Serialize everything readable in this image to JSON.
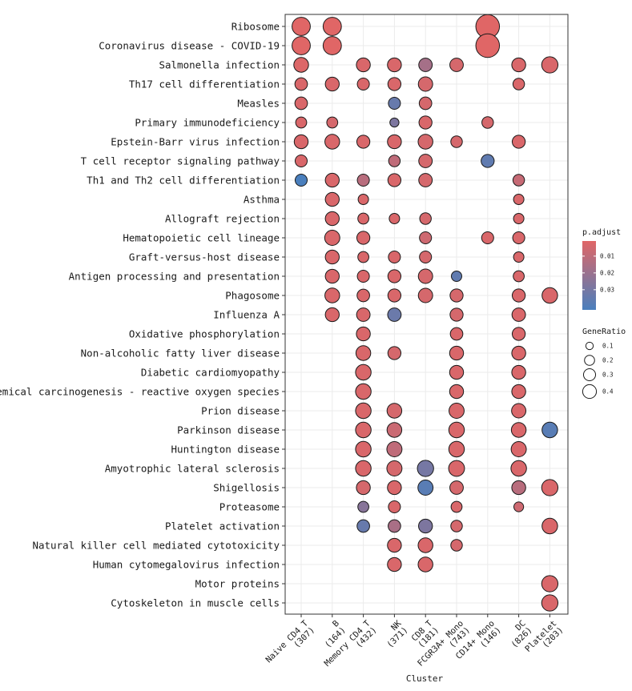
{
  "chart_data": {
    "type": "scatter",
    "subtype": "dot-plot",
    "xlabel": "Cluster",
    "clusters": [
      {
        "name": "Naive CD4 T",
        "count": "(307)"
      },
      {
        "name": "B",
        "count": "(164)"
      },
      {
        "name": "Memory CD4 T",
        "count": "(432)"
      },
      {
        "name": "NK",
        "count": "(371)"
      },
      {
        "name": "CD8 T",
        "count": "(181)"
      },
      {
        "name": "FCGR3A+ Mono",
        "count": "(743)"
      },
      {
        "name": "CD14+ Mono",
        "count": "(146)"
      },
      {
        "name": "DC",
        "count": "(826)"
      },
      {
        "name": "Platelet",
        "count": "(203)"
      }
    ],
    "terms": [
      "Ribosome",
      "Coronavirus disease - COVID-19",
      "Salmonella infection",
      "Th17 cell differentiation",
      "Measles",
      "Primary immunodeficiency",
      "Epstein-Barr virus infection",
      "T cell receptor signaling pathway",
      "Th1 and Th2 cell differentiation",
      "Asthma",
      "Allograft rejection",
      "Hematopoietic cell lineage",
      "Graft-versus-host disease",
      "Antigen processing and presentation",
      "Phagosome",
      "Influenza A",
      "Oxidative phosphorylation",
      "Non-alcoholic fatty liver disease",
      "Diabetic cardiomyopathy",
      "Chemical carcinogenesis - reactive oxygen species",
      "Prion disease",
      "Parkinson disease",
      "Huntington disease",
      "Amyotrophic lateral sclerosis",
      "Shigellosis",
      "Proteasome",
      "Platelet activation",
      "Natural killer cell mediated cytotoxicity",
      "Human cytomegalovirus infection",
      "Motor proteins",
      "Cytoskeleton in muscle cells"
    ],
    "points": [
      {
        "term": 0,
        "cluster": 0,
        "gene_ratio": 0.26,
        "p_adjust": 0.001
      },
      {
        "term": 0,
        "cluster": 1,
        "gene_ratio": 0.26,
        "p_adjust": 0.001
      },
      {
        "term": 0,
        "cluster": 6,
        "gene_ratio": 0.46,
        "p_adjust": 0.001
      },
      {
        "term": 1,
        "cluster": 0,
        "gene_ratio": 0.26,
        "p_adjust": 0.001
      },
      {
        "term": 1,
        "cluster": 1,
        "gene_ratio": 0.26,
        "p_adjust": 0.001
      },
      {
        "term": 1,
        "cluster": 6,
        "gene_ratio": 0.46,
        "p_adjust": 0.001
      },
      {
        "term": 2,
        "cluster": 0,
        "gene_ratio": 0.16,
        "p_adjust": 0.002
      },
      {
        "term": 2,
        "cluster": 2,
        "gene_ratio": 0.14,
        "p_adjust": 0.003
      },
      {
        "term": 2,
        "cluster": 3,
        "gene_ratio": 0.14,
        "p_adjust": 0.003
      },
      {
        "term": 2,
        "cluster": 4,
        "gene_ratio": 0.13,
        "p_adjust": 0.017
      },
      {
        "term": 2,
        "cluster": 5,
        "gene_ratio": 0.13,
        "p_adjust": 0.004
      },
      {
        "term": 2,
        "cluster": 7,
        "gene_ratio": 0.14,
        "p_adjust": 0.003
      },
      {
        "term": 2,
        "cluster": 8,
        "gene_ratio": 0.2,
        "p_adjust": 0.003
      },
      {
        "term": 3,
        "cluster": 0,
        "gene_ratio": 0.11,
        "p_adjust": 0.003
      },
      {
        "term": 3,
        "cluster": 1,
        "gene_ratio": 0.14,
        "p_adjust": 0.003
      },
      {
        "term": 3,
        "cluster": 2,
        "gene_ratio": 0.1,
        "p_adjust": 0.003
      },
      {
        "term": 3,
        "cluster": 3,
        "gene_ratio": 0.12,
        "p_adjust": 0.003
      },
      {
        "term": 3,
        "cluster": 4,
        "gene_ratio": 0.15,
        "p_adjust": 0.004
      },
      {
        "term": 3,
        "cluster": 7,
        "gene_ratio": 0.09,
        "p_adjust": 0.003
      },
      {
        "term": 4,
        "cluster": 0,
        "gene_ratio": 0.11,
        "p_adjust": 0.003
      },
      {
        "term": 4,
        "cluster": 3,
        "gene_ratio": 0.1,
        "p_adjust": 0.034
      },
      {
        "term": 4,
        "cluster": 4,
        "gene_ratio": 0.11,
        "p_adjust": 0.004
      },
      {
        "term": 5,
        "cluster": 0,
        "gene_ratio": 0.08,
        "p_adjust": 0.003
      },
      {
        "term": 5,
        "cluster": 1,
        "gene_ratio": 0.08,
        "p_adjust": 0.004
      },
      {
        "term": 5,
        "cluster": 3,
        "gene_ratio": 0.05,
        "p_adjust": 0.028
      },
      {
        "term": 5,
        "cluster": 4,
        "gene_ratio": 0.12,
        "p_adjust": 0.003
      },
      {
        "term": 5,
        "cluster": 6,
        "gene_ratio": 0.09,
        "p_adjust": 0.004
      },
      {
        "term": 6,
        "cluster": 0,
        "gene_ratio": 0.14,
        "p_adjust": 0.003
      },
      {
        "term": 6,
        "cluster": 1,
        "gene_ratio": 0.16,
        "p_adjust": 0.003
      },
      {
        "term": 6,
        "cluster": 2,
        "gene_ratio": 0.12,
        "p_adjust": 0.003
      },
      {
        "term": 6,
        "cluster": 3,
        "gene_ratio": 0.14,
        "p_adjust": 0.003
      },
      {
        "term": 6,
        "cluster": 4,
        "gene_ratio": 0.16,
        "p_adjust": 0.004
      },
      {
        "term": 6,
        "cluster": 5,
        "gene_ratio": 0.09,
        "p_adjust": 0.004
      },
      {
        "term": 6,
        "cluster": 7,
        "gene_ratio": 0.12,
        "p_adjust": 0.003
      },
      {
        "term": 7,
        "cluster": 0,
        "gene_ratio": 0.1,
        "p_adjust": 0.003
      },
      {
        "term": 7,
        "cluster": 3,
        "gene_ratio": 0.09,
        "p_adjust": 0.01
      },
      {
        "term": 7,
        "cluster": 4,
        "gene_ratio": 0.13,
        "p_adjust": 0.004
      },
      {
        "term": 7,
        "cluster": 6,
        "gene_ratio": 0.12,
        "p_adjust": 0.036
      },
      {
        "term": 8,
        "cluster": 0,
        "gene_ratio": 0.1,
        "p_adjust": 0.042
      },
      {
        "term": 8,
        "cluster": 1,
        "gene_ratio": 0.14,
        "p_adjust": 0.003
      },
      {
        "term": 8,
        "cluster": 2,
        "gene_ratio": 0.1,
        "p_adjust": 0.012
      },
      {
        "term": 8,
        "cluster": 3,
        "gene_ratio": 0.12,
        "p_adjust": 0.003
      },
      {
        "term": 8,
        "cluster": 4,
        "gene_ratio": 0.13,
        "p_adjust": 0.004
      },
      {
        "term": 8,
        "cluster": 7,
        "gene_ratio": 0.09,
        "p_adjust": 0.008
      },
      {
        "term": 9,
        "cluster": 1,
        "gene_ratio": 0.14,
        "p_adjust": 0.003
      },
      {
        "term": 9,
        "cluster": 2,
        "gene_ratio": 0.07,
        "p_adjust": 0.003
      },
      {
        "term": 9,
        "cluster": 7,
        "gene_ratio": 0.07,
        "p_adjust": 0.003
      },
      {
        "term": 10,
        "cluster": 1,
        "gene_ratio": 0.14,
        "p_adjust": 0.003
      },
      {
        "term": 10,
        "cluster": 2,
        "gene_ratio": 0.08,
        "p_adjust": 0.003
      },
      {
        "term": 10,
        "cluster": 3,
        "gene_ratio": 0.07,
        "p_adjust": 0.003
      },
      {
        "term": 10,
        "cluster": 4,
        "gene_ratio": 0.09,
        "p_adjust": 0.004
      },
      {
        "term": 10,
        "cluster": 7,
        "gene_ratio": 0.07,
        "p_adjust": 0.003
      },
      {
        "term": 11,
        "cluster": 1,
        "gene_ratio": 0.17,
        "p_adjust": 0.003
      },
      {
        "term": 11,
        "cluster": 2,
        "gene_ratio": 0.12,
        "p_adjust": 0.003
      },
      {
        "term": 11,
        "cluster": 4,
        "gene_ratio": 0.1,
        "p_adjust": 0.006
      },
      {
        "term": 11,
        "cluster": 6,
        "gene_ratio": 0.1,
        "p_adjust": 0.003
      },
      {
        "term": 11,
        "cluster": 7,
        "gene_ratio": 0.1,
        "p_adjust": 0.003
      },
      {
        "term": 12,
        "cluster": 1,
        "gene_ratio": 0.14,
        "p_adjust": 0.003
      },
      {
        "term": 12,
        "cluster": 2,
        "gene_ratio": 0.08,
        "p_adjust": 0.003
      },
      {
        "term": 12,
        "cluster": 3,
        "gene_ratio": 0.1,
        "p_adjust": 0.003
      },
      {
        "term": 12,
        "cluster": 4,
        "gene_ratio": 0.1,
        "p_adjust": 0.004
      },
      {
        "term": 12,
        "cluster": 7,
        "gene_ratio": 0.07,
        "p_adjust": 0.003
      },
      {
        "term": 13,
        "cluster": 1,
        "gene_ratio": 0.14,
        "p_adjust": 0.003
      },
      {
        "term": 13,
        "cluster": 2,
        "gene_ratio": 0.1,
        "p_adjust": 0.003
      },
      {
        "term": 13,
        "cluster": 3,
        "gene_ratio": 0.12,
        "p_adjust": 0.003
      },
      {
        "term": 13,
        "cluster": 4,
        "gene_ratio": 0.15,
        "p_adjust": 0.004
      },
      {
        "term": 13,
        "cluster": 5,
        "gene_ratio": 0.07,
        "p_adjust": 0.036
      },
      {
        "term": 13,
        "cluster": 7,
        "gene_ratio": 0.08,
        "p_adjust": 0.003
      },
      {
        "term": 14,
        "cluster": 1,
        "gene_ratio": 0.16,
        "p_adjust": 0.003
      },
      {
        "term": 14,
        "cluster": 2,
        "gene_ratio": 0.11,
        "p_adjust": 0.003
      },
      {
        "term": 14,
        "cluster": 3,
        "gene_ratio": 0.12,
        "p_adjust": 0.003
      },
      {
        "term": 14,
        "cluster": 4,
        "gene_ratio": 0.15,
        "p_adjust": 0.004
      },
      {
        "term": 14,
        "cluster": 5,
        "gene_ratio": 0.12,
        "p_adjust": 0.004
      },
      {
        "term": 14,
        "cluster": 7,
        "gene_ratio": 0.12,
        "p_adjust": 0.003
      },
      {
        "term": 14,
        "cluster": 8,
        "gene_ratio": 0.18,
        "p_adjust": 0.003
      },
      {
        "term": 15,
        "cluster": 1,
        "gene_ratio": 0.14,
        "p_adjust": 0.003
      },
      {
        "term": 15,
        "cluster": 2,
        "gene_ratio": 0.13,
        "p_adjust": 0.003
      },
      {
        "term": 15,
        "cluster": 3,
        "gene_ratio": 0.13,
        "p_adjust": 0.033
      },
      {
        "term": 15,
        "cluster": 5,
        "gene_ratio": 0.12,
        "p_adjust": 0.004
      },
      {
        "term": 15,
        "cluster": 7,
        "gene_ratio": 0.13,
        "p_adjust": 0.003
      },
      {
        "term": 16,
        "cluster": 2,
        "gene_ratio": 0.14,
        "p_adjust": 0.003
      },
      {
        "term": 16,
        "cluster": 5,
        "gene_ratio": 0.11,
        "p_adjust": 0.003
      },
      {
        "term": 16,
        "cluster": 7,
        "gene_ratio": 0.12,
        "p_adjust": 0.003
      },
      {
        "term": 17,
        "cluster": 2,
        "gene_ratio": 0.16,
        "p_adjust": 0.003
      },
      {
        "term": 17,
        "cluster": 3,
        "gene_ratio": 0.12,
        "p_adjust": 0.004
      },
      {
        "term": 17,
        "cluster": 5,
        "gene_ratio": 0.14,
        "p_adjust": 0.003
      },
      {
        "term": 17,
        "cluster": 7,
        "gene_ratio": 0.14,
        "p_adjust": 0.003
      },
      {
        "term": 18,
        "cluster": 2,
        "gene_ratio": 0.18,
        "p_adjust": 0.003
      },
      {
        "term": 18,
        "cluster": 5,
        "gene_ratio": 0.14,
        "p_adjust": 0.003
      },
      {
        "term": 18,
        "cluster": 7,
        "gene_ratio": 0.14,
        "p_adjust": 0.003
      },
      {
        "term": 19,
        "cluster": 2,
        "gene_ratio": 0.18,
        "p_adjust": 0.003
      },
      {
        "term": 19,
        "cluster": 5,
        "gene_ratio": 0.14,
        "p_adjust": 0.003
      },
      {
        "term": 19,
        "cluster": 7,
        "gene_ratio": 0.14,
        "p_adjust": 0.003
      },
      {
        "term": 20,
        "cluster": 2,
        "gene_ratio": 0.18,
        "p_adjust": 0.003
      },
      {
        "term": 20,
        "cluster": 3,
        "gene_ratio": 0.16,
        "p_adjust": 0.004
      },
      {
        "term": 20,
        "cluster": 5,
        "gene_ratio": 0.17,
        "p_adjust": 0.003
      },
      {
        "term": 20,
        "cluster": 7,
        "gene_ratio": 0.15,
        "p_adjust": 0.003
      },
      {
        "term": 21,
        "cluster": 2,
        "gene_ratio": 0.18,
        "p_adjust": 0.003
      },
      {
        "term": 21,
        "cluster": 3,
        "gene_ratio": 0.16,
        "p_adjust": 0.007
      },
      {
        "term": 21,
        "cluster": 5,
        "gene_ratio": 0.18,
        "p_adjust": 0.003
      },
      {
        "term": 21,
        "cluster": 7,
        "gene_ratio": 0.16,
        "p_adjust": 0.003
      },
      {
        "term": 21,
        "cluster": 8,
        "gene_ratio": 0.18,
        "p_adjust": 0.038
      },
      {
        "term": 22,
        "cluster": 2,
        "gene_ratio": 0.18,
        "p_adjust": 0.003
      },
      {
        "term": 22,
        "cluster": 3,
        "gene_ratio": 0.17,
        "p_adjust": 0.01
      },
      {
        "term": 22,
        "cluster": 5,
        "gene_ratio": 0.18,
        "p_adjust": 0.003
      },
      {
        "term": 22,
        "cluster": 7,
        "gene_ratio": 0.17,
        "p_adjust": 0.003
      },
      {
        "term": 23,
        "cluster": 2,
        "gene_ratio": 0.18,
        "p_adjust": 0.003
      },
      {
        "term": 23,
        "cluster": 3,
        "gene_ratio": 0.17,
        "p_adjust": 0.004
      },
      {
        "term": 23,
        "cluster": 4,
        "gene_ratio": 0.2,
        "p_adjust": 0.03
      },
      {
        "term": 23,
        "cluster": 5,
        "gene_ratio": 0.19,
        "p_adjust": 0.003
      },
      {
        "term": 23,
        "cluster": 7,
        "gene_ratio": 0.18,
        "p_adjust": 0.003
      },
      {
        "term": 24,
        "cluster": 2,
        "gene_ratio": 0.14,
        "p_adjust": 0.004
      },
      {
        "term": 24,
        "cluster": 3,
        "gene_ratio": 0.14,
        "p_adjust": 0.003
      },
      {
        "term": 24,
        "cluster": 4,
        "gene_ratio": 0.17,
        "p_adjust": 0.038
      },
      {
        "term": 24,
        "cluster": 5,
        "gene_ratio": 0.13,
        "p_adjust": 0.004
      },
      {
        "term": 24,
        "cluster": 7,
        "gene_ratio": 0.14,
        "p_adjust": 0.012
      },
      {
        "term": 24,
        "cluster": 8,
        "gene_ratio": 0.2,
        "p_adjust": 0.003
      },
      {
        "term": 25,
        "cluster": 2,
        "gene_ratio": 0.08,
        "p_adjust": 0.025
      },
      {
        "term": 25,
        "cluster": 3,
        "gene_ratio": 0.1,
        "p_adjust": 0.003
      },
      {
        "term": 25,
        "cluster": 5,
        "gene_ratio": 0.08,
        "p_adjust": 0.003
      },
      {
        "term": 25,
        "cluster": 7,
        "gene_ratio": 0.06,
        "p_adjust": 0.006
      },
      {
        "term": 26,
        "cluster": 2,
        "gene_ratio": 0.11,
        "p_adjust": 0.034
      },
      {
        "term": 26,
        "cluster": 3,
        "gene_ratio": 0.11,
        "p_adjust": 0.016
      },
      {
        "term": 26,
        "cluster": 4,
        "gene_ratio": 0.14,
        "p_adjust": 0.028
      },
      {
        "term": 26,
        "cluster": 5,
        "gene_ratio": 0.09,
        "p_adjust": 0.004
      },
      {
        "term": 26,
        "cluster": 8,
        "gene_ratio": 0.18,
        "p_adjust": 0.003
      },
      {
        "term": 27,
        "cluster": 3,
        "gene_ratio": 0.14,
        "p_adjust": 0.003
      },
      {
        "term": 27,
        "cluster": 4,
        "gene_ratio": 0.16,
        "p_adjust": 0.003
      },
      {
        "term": 27,
        "cluster": 5,
        "gene_ratio": 0.09,
        "p_adjust": 0.004
      },
      {
        "term": 28,
        "cluster": 3,
        "gene_ratio": 0.14,
        "p_adjust": 0.003
      },
      {
        "term": 28,
        "cluster": 4,
        "gene_ratio": 0.16,
        "p_adjust": 0.003
      },
      {
        "term": 29,
        "cluster": 8,
        "gene_ratio": 0.2,
        "p_adjust": 0.003
      },
      {
        "term": 30,
        "cluster": 8,
        "gene_ratio": 0.2,
        "p_adjust": 0.003
      }
    ],
    "color_legend": {
      "title": "p.adjust",
      "min": 0.001,
      "max": 0.042,
      "low_color": "#e06666",
      "high_color": "#4a7fbd",
      "ticks": [
        0.01,
        0.02,
        0.03
      ],
      "tick_labels": [
        "0.01",
        "0.02",
        "0.03"
      ]
    },
    "size_legend": {
      "title": "GeneRatio",
      "values": [
        0.1,
        0.2,
        0.3,
        0.4
      ],
      "labels": [
        "0.1",
        "0.2",
        "0.3",
        "0.4"
      ]
    },
    "grid": true,
    "legend_position": "right"
  }
}
